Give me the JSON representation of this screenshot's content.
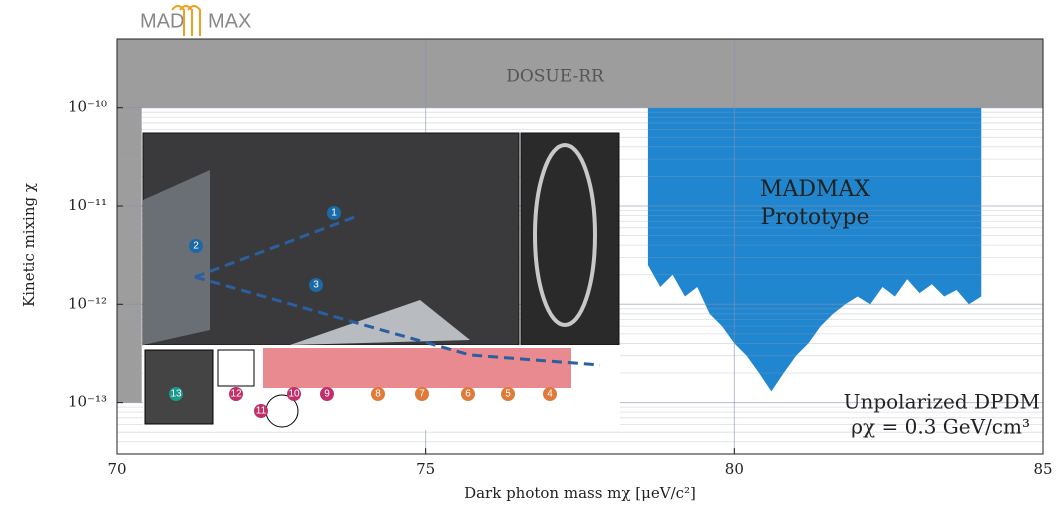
{
  "chart_data": {
    "type": "area",
    "title": "",
    "logo": [
      "MAD",
      "MAX"
    ],
    "xlabel": "Dark photon mass mχ [μeV/c²]",
    "ylabel": "Kinetic mixing χ",
    "xlim": [
      70,
      85
    ],
    "xticks": [
      70,
      75,
      80,
      85
    ],
    "ylim": [
      3e-14,
      5e-10
    ],
    "log_y": true,
    "yticks": [
      {
        "value": 1e-13,
        "label": "10⁻¹³"
      },
      {
        "value": 1e-12,
        "label": "10⁻¹²"
      },
      {
        "value": 1e-11,
        "label": "10⁻¹¹"
      },
      {
        "value": 1e-10,
        "label": "10⁻¹⁰"
      }
    ],
    "grid": true,
    "series": [
      {
        "name": "DOSUE-RR",
        "color": "#8c8c8c",
        "upper": 5e-10,
        "x": [
          70,
          70.4,
          70.4,
          85
        ],
        "values": [
          1e-13,
          1e-13,
          1e-10,
          1e-10
        ]
      },
      {
        "name": "MADMAX Prototype",
        "color": "#1f86cf",
        "upper": 1e-10,
        "x": [
          78.6,
          78.8,
          79.0,
          79.2,
          79.4,
          79.6,
          79.8,
          80.0,
          80.2,
          80.4,
          80.6,
          80.8,
          81.0,
          81.2,
          81.4,
          81.6,
          81.8,
          82.0,
          82.2,
          82.4,
          82.6,
          82.8,
          83.0,
          83.2,
          83.4,
          83.6,
          83.8,
          84.0
        ],
        "values": [
          2.5e-12,
          1.5e-12,
          2e-12,
          1.2e-12,
          1.5e-12,
          8e-13,
          6e-13,
          4e-13,
          3e-13,
          2e-13,
          1.3e-13,
          2e-13,
          3e-13,
          4e-13,
          6e-13,
          8e-13,
          1e-12,
          1.2e-12,
          1e-12,
          1.5e-12,
          1.2e-12,
          1.8e-12,
          1.3e-12,
          1.6e-12,
          1.2e-12,
          1.4e-12,
          1e-12,
          1.2e-12
        ]
      }
    ],
    "annotations": [
      "DOSUE-RR",
      "MADMAX",
      "Prototype",
      "Unpolarized DPDM",
      "ρχ = 0.3 GeV/cm³"
    ],
    "photo_labels": [
      "1",
      "2",
      "3",
      "4",
      "5",
      "6",
      "7",
      "8",
      "9",
      "10",
      "11",
      "12",
      "13"
    ]
  }
}
